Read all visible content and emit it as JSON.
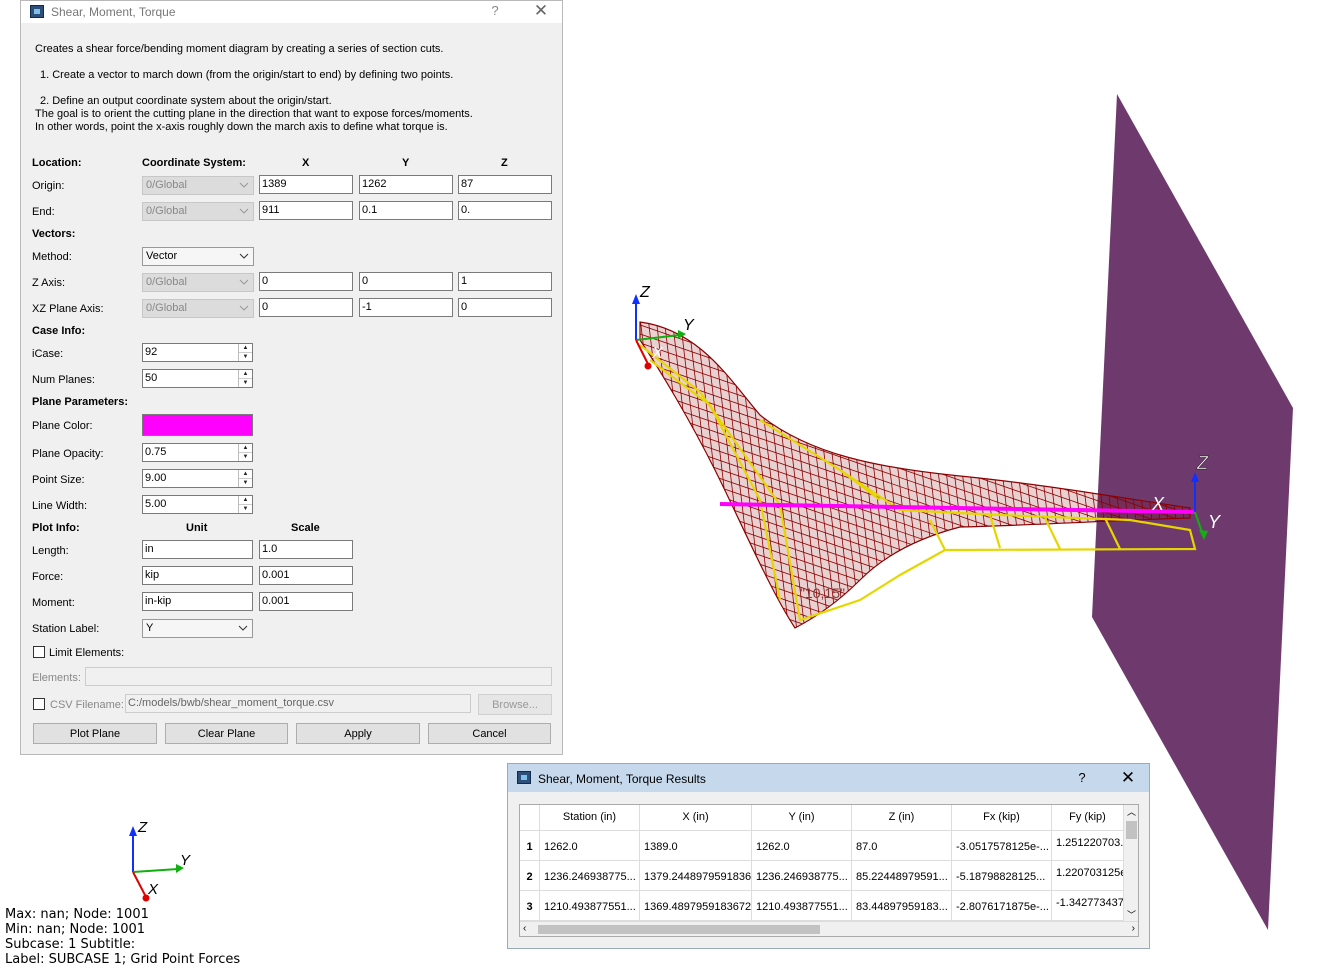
{
  "dialog": {
    "title": "Shear, Moment, Torque",
    "help": "?",
    "close": "✕",
    "description": [
      "Creates a shear force/bending moment diagram by creating a series of section cuts.",
      "1. Create a vector to march down (from the origin/start to end) by defining two points.",
      "2. Define an output coordinate system about the origin/start.",
      "The goal is to orient the cutting plane in the direction that want to expose forces/moments.",
      "In other words, point the x-axis roughly down the march axis to define what torque is."
    ],
    "location": {
      "section_label": "Location:",
      "coord_header": "Coordinate System:",
      "x_header": "X",
      "y_header": "Y",
      "z_header": "Z",
      "origin": {
        "label": "Origin:",
        "coord": "0/Global",
        "x": "1389",
        "y": "1262",
        "z": "87"
      },
      "end": {
        "label": "End:",
        "coord": "0/Global",
        "x": "911",
        "y": "0.1",
        "z": "0."
      }
    },
    "vectors": {
      "section_label": "Vectors:",
      "method": {
        "label": "Method:",
        "value": "Vector"
      },
      "z_axis": {
        "label": "Z Axis:",
        "coord": "0/Global",
        "x": "0",
        "y": "0",
        "z": "1"
      },
      "xz_axis": {
        "label": "XZ Plane Axis:",
        "coord": "0/Global",
        "x": "0",
        "y": "-1",
        "z": "0"
      }
    },
    "case_info": {
      "section_label": "Case Info:",
      "icase": {
        "label": "iCase:",
        "value": "92"
      },
      "num_planes": {
        "label": "Num Planes:",
        "value": "50"
      }
    },
    "plane_params": {
      "section_label": "Plane Parameters:",
      "color": {
        "label": "Plane Color:",
        "value": "#ff00ff"
      },
      "opacity": {
        "label": "Plane Opacity:",
        "value": "0.75"
      },
      "point_size": {
        "label": "Point Size:",
        "value": "9.00"
      },
      "line_width": {
        "label": "Line Width:",
        "value": "5.00"
      }
    },
    "plot_info": {
      "section_label": "Plot Info:",
      "unit_header": "Unit",
      "scale_header": "Scale",
      "length": {
        "label": "Length:",
        "unit": "in",
        "scale": "1.0"
      },
      "force": {
        "label": "Force:",
        "unit": "kip",
        "scale": "0.001"
      },
      "moment": {
        "label": "Moment:",
        "unit": "in-kip",
        "scale": "0.001"
      },
      "station": {
        "label": "Station Label:",
        "value": "Y"
      }
    },
    "limit_elements": {
      "label": "Limit Elements:",
      "checked": false
    },
    "elements": {
      "label": "Elements:",
      "value": ""
    },
    "csv": {
      "label": "CSV Filename:",
      "value": "C:/models/bwb/shear_moment_torque.csv",
      "browse": "Browse...",
      "checked": false
    },
    "buttons": {
      "plot_plane": "Plot Plane",
      "clear_plane": "Clear Plane",
      "apply": "Apply",
      "cancel": "Cancel"
    }
  },
  "results": {
    "title": "Shear, Moment, Torque Results",
    "help": "?",
    "close": "✕",
    "columns": [
      "Station (in)",
      "X (in)",
      "Y (in)",
      "Z (in)",
      "Fx (kip)",
      "Fy (kip)"
    ],
    "rows": [
      {
        "num": "1",
        "cells": [
          "1262.0",
          "1389.0",
          "1262.0",
          "87.0",
          "-3.0517578125e-...",
          "1.251220703..."
        ]
      },
      {
        "num": "2",
        "cells": [
          "1236.246938775...",
          "1379.2448979591836",
          "1236.246938775...",
          "85.22448979591...",
          "-5.18798828125...",
          "1.220703125e..."
        ]
      },
      {
        "num": "3",
        "cells": [
          "1210.493877551...",
          "1369.4897959183672",
          "1210.493877551...",
          "83.44897959183...",
          "-2.8076171875e-...",
          "-1.342773437..."
        ]
      }
    ]
  },
  "viewport": {
    "axis_labels": {
      "x": "X",
      "y": "Y",
      "z": "Z"
    },
    "model_label": "\"10,15\"",
    "colors": {
      "wing_mesh": "#8b0000",
      "structure": "#e6d600",
      "cut_plane": "#6e3a6e",
      "stations": "#ff00ff"
    }
  },
  "info_text": {
    "max": "Max:  nan; Node: 1001",
    "min": "Min:  nan; Node: 1001",
    "subcase": "Subcase: 1 Subtitle:",
    "label": "Label: SUBCASE 1; Grid Point Forces"
  }
}
